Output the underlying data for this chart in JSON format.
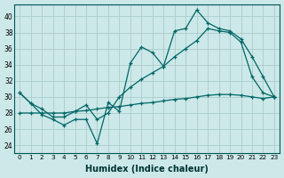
{
  "xlabel": "Humidex (Indice chaleur)",
  "bg_color": "#cce8e8",
  "grid_color": "#aacccc",
  "line_color": "#006666",
  "xlim": [
    -0.5,
    23.5
  ],
  "ylim": [
    23.0,
    41.5
  ],
  "xticks": [
    0,
    1,
    2,
    3,
    4,
    5,
    6,
    7,
    8,
    9,
    10,
    11,
    12,
    13,
    14,
    15,
    16,
    17,
    18,
    19,
    20,
    21,
    22,
    23
  ],
  "yticks": [
    24,
    26,
    28,
    30,
    32,
    34,
    36,
    38,
    40
  ],
  "line1_x": [
    0,
    1,
    2,
    3,
    4,
    5,
    6,
    7,
    8,
    9,
    10,
    11,
    12,
    13,
    14,
    15,
    16,
    17,
    18,
    19,
    20,
    21,
    22,
    23
  ],
  "line1_y": [
    30.5,
    29.2,
    27.8,
    27.2,
    26.5,
    27.2,
    27.2,
    24.2,
    29.3,
    28.2,
    34.2,
    36.2,
    35.5,
    33.8,
    38.2,
    38.5,
    40.8,
    39.2,
    38.5,
    38.2,
    37.2,
    35.0,
    32.5,
    30.0
  ],
  "line2_x": [
    0,
    1,
    2,
    3,
    4,
    5,
    6,
    7,
    8,
    9,
    10,
    11,
    12,
    13,
    14,
    15,
    16,
    17,
    18,
    19,
    20,
    21,
    22,
    23
  ],
  "line2_y": [
    30.5,
    29.2,
    28.5,
    27.5,
    27.5,
    28.2,
    29.0,
    27.2,
    28.0,
    30.0,
    31.2,
    32.2,
    33.0,
    33.8,
    35.0,
    36.0,
    37.0,
    38.5,
    38.2,
    38.0,
    36.8,
    32.5,
    30.5,
    30.0
  ],
  "line3_x": [
    0,
    1,
    2,
    3,
    4,
    5,
    6,
    7,
    8,
    9,
    10,
    11,
    12,
    13,
    14,
    15,
    16,
    17,
    18,
    19,
    20,
    21,
    22,
    23
  ],
  "line3_y": [
    28.0,
    28.0,
    28.0,
    28.0,
    28.0,
    28.2,
    28.3,
    28.5,
    28.7,
    28.8,
    29.0,
    29.2,
    29.3,
    29.5,
    29.7,
    29.8,
    30.0,
    30.2,
    30.3,
    30.3,
    30.2,
    30.0,
    29.8,
    30.0
  ]
}
